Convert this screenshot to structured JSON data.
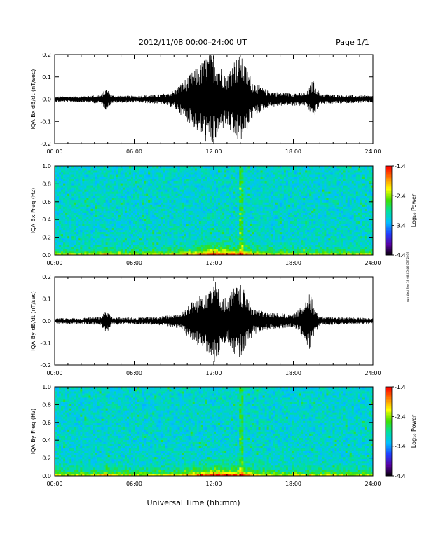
{
  "header": {
    "title": "2012/11/08  00:00–24:00 UT",
    "page": "Page 1/1"
  },
  "footer": {
    "xlabel": "Universal Time (hh:mm)"
  },
  "side_stamp": "run Wed Sep 18 08:05:46 CST 2019",
  "colors": {
    "trace": "#000000",
    "axis": "#000000",
    "background": "#ffffff",
    "colormap": [
      "#000000",
      "#5a00a0",
      "#2040ff",
      "#00c0ff",
      "#00e0a0",
      "#40e000",
      "#ffff00",
      "#ff8000",
      "#ff0000"
    ]
  },
  "chart_data": [
    {
      "type": "line",
      "ylabel": "IQA Bx dB/dt (nT/sec)",
      "xlim": [
        0,
        24
      ],
      "ylim": [
        -0.2,
        0.2
      ],
      "x_ticks": [
        "00:00",
        "06:00",
        "12:00",
        "18:00",
        "24:00"
      ],
      "y_ticks": [
        "-0.2",
        "-0.1",
        "0.0",
        "0.1",
        "0.2"
      ],
      "envelope": {
        "hours": [
          0,
          2,
          3.5,
          3.9,
          4.3,
          6,
          8,
          9,
          10,
          11,
          11.5,
          12,
          12.5,
          13,
          13.5,
          14,
          15,
          16,
          17,
          19,
          19.5,
          20,
          22,
          24
        ],
        "amplitude": [
          0.012,
          0.014,
          0.02,
          0.05,
          0.018,
          0.015,
          0.022,
          0.04,
          0.1,
          0.16,
          0.2,
          0.21,
          0.15,
          0.12,
          0.18,
          0.2,
          0.08,
          0.04,
          0.03,
          0.03,
          0.09,
          0.025,
          0.018,
          0.016
        ]
      }
    },
    {
      "type": "heatmap",
      "ylabel": "IQA Bx Freq (Hz)",
      "xlim": [
        0,
        24
      ],
      "ylim": [
        0,
        1.0
      ],
      "x_ticks": [
        "00:00",
        "06:00",
        "12:00",
        "18:00",
        "24:00"
      ],
      "y_ticks": [
        "0.0",
        "0.2",
        "0.4",
        "0.6",
        "0.8",
        "1.0"
      ],
      "colorbar": {
        "label": "Log₁₀ Power",
        "range": [
          -4.4,
          -1.4
        ],
        "ticks": [
          "-1.4",
          "-2.4",
          "-3.4",
          "-4.4"
        ]
      }
    },
    {
      "type": "line",
      "ylabel": "IQA By dB/dt (nT/sec)",
      "xlim": [
        0,
        24
      ],
      "ylim": [
        -0.2,
        0.2
      ],
      "x_ticks": [
        "00:00",
        "06:00",
        "12:00",
        "18:00",
        "24:00"
      ],
      "y_ticks": [
        "-0.2",
        "-0.1",
        "0.0",
        "0.1",
        "0.2"
      ],
      "envelope": {
        "hours": [
          0,
          2,
          3.5,
          3.9,
          4.3,
          6,
          8,
          9.5,
          10,
          11,
          11.5,
          12,
          12.5,
          13,
          13.5,
          14,
          15,
          16,
          18,
          18.8,
          19.2,
          19.6,
          20,
          22,
          24
        ],
        "amplitude": [
          0.012,
          0.014,
          0.02,
          0.06,
          0.018,
          0.015,
          0.02,
          0.035,
          0.07,
          0.12,
          0.16,
          0.2,
          0.13,
          0.1,
          0.15,
          0.17,
          0.06,
          0.04,
          0.03,
          0.08,
          0.15,
          0.06,
          0.02,
          0.016,
          0.014
        ]
      }
    },
    {
      "type": "heatmap",
      "ylabel": "IQA By Freq (Hz)",
      "xlim": [
        0,
        24
      ],
      "ylim": [
        0,
        1.0
      ],
      "x_ticks": [
        "00:00",
        "06:00",
        "12:00",
        "18:00",
        "24:00"
      ],
      "y_ticks": [
        "0.0",
        "0.2",
        "0.4",
        "0.6",
        "0.8",
        "1.0"
      ],
      "colorbar": {
        "label": "Log₁₀ Power",
        "range": [
          -4.4,
          -1.4
        ],
        "ticks": [
          "-1.4",
          "-2.4",
          "-3.4",
          "-4.4"
        ]
      }
    }
  ]
}
